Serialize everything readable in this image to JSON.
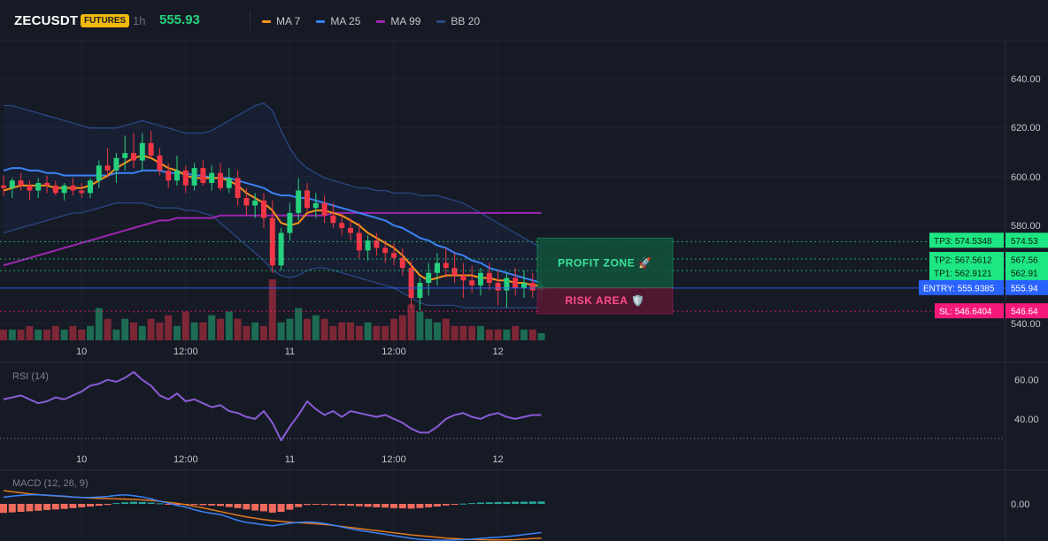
{
  "header": {
    "symbol": "ZECUSDT",
    "badge": "FUTURES",
    "interval": "1h",
    "price": "555.93",
    "legend": [
      {
        "label": "MA 7",
        "color": "#f7931a",
        "icon": "line-swatch-icon"
      },
      {
        "label": "MA 25",
        "color": "#3b82f6",
        "icon": "line-swatch-icon"
      },
      {
        "label": "MA 99",
        "color": "#9c27b0",
        "icon": "line-swatch-icon"
      },
      {
        "label": "BB 20",
        "color": "#2c4a8a",
        "icon": "line-swatch-icon"
      }
    ]
  },
  "colors": {
    "up": "#26d07c",
    "down": "#f23645",
    "vol_up": "#1f7a5c",
    "vol_down": "#8f2a3a",
    "ma7": "#f7931a",
    "ma25": "#3b82f6",
    "ma99": "#9c27b0",
    "bb": "#2c4a8a",
    "rsi": "#8a5cd6",
    "entry": "#2962ff",
    "tp": "#1de782",
    "sl": "#f7197a",
    "macd_line": "#3b82f6",
    "signal_line": "#e07a1f",
    "hist_pos": "#26a69a",
    "hist_neg": "#ef6a5c"
  },
  "chart_data": {
    "type": "candlestick",
    "time_labels": [
      {
        "label": "10",
        "index": 9
      },
      {
        "label": "12:00",
        "index": 21
      },
      {
        "label": "11",
        "index": 33
      },
      {
        "label": "12:00",
        "index": 45
      },
      {
        "label": "12",
        "index": 57
      }
    ],
    "price_axis": {
      "ticks": [
        "640.00",
        "620.00",
        "600.00",
        "580.00",
        "540.00"
      ],
      "range": [
        535,
        655
      ]
    },
    "ohlc": [
      [
        597,
        601,
        593,
        596
      ],
      [
        596,
        600,
        592,
        599
      ],
      [
        599,
        602,
        595,
        597
      ],
      [
        597,
        599,
        591,
        595
      ],
      [
        595,
        600,
        592,
        598
      ],
      [
        598,
        601,
        594,
        597
      ],
      [
        597,
        599,
        593,
        594
      ],
      [
        594,
        598,
        591,
        597
      ],
      [
        597,
        600,
        593,
        595
      ],
      [
        595,
        598,
        592,
        594
      ],
      [
        594,
        600,
        592,
        599
      ],
      [
        599,
        607,
        596,
        605
      ],
      [
        605,
        612,
        600,
        603
      ],
      [
        603,
        610,
        598,
        608
      ],
      [
        608,
        617,
        603,
        610
      ],
      [
        610,
        618,
        604,
        607
      ],
      [
        607,
        618,
        603,
        614
      ],
      [
        614,
        619,
        608,
        609
      ],
      [
        609,
        612,
        601,
        603
      ],
      [
        603,
        606,
        596,
        599
      ],
      [
        599,
        609,
        597,
        603
      ],
      [
        603,
        605,
        594,
        597
      ],
      [
        597,
        606,
        595,
        604
      ],
      [
        604,
        607,
        597,
        598
      ],
      [
        598,
        605,
        595,
        602
      ],
      [
        602,
        606,
        595,
        596
      ],
      [
        596,
        604,
        594,
        600
      ],
      [
        600,
        603,
        589,
        592
      ],
      [
        592,
        596,
        585,
        589
      ],
      [
        589,
        594,
        584,
        591
      ],
      [
        591,
        594,
        580,
        584
      ],
      [
        584,
        591,
        562,
        565
      ],
      [
        565,
        580,
        563,
        578
      ],
      [
        578,
        590,
        575,
        586
      ],
      [
        586,
        600,
        583,
        595
      ],
      [
        595,
        598,
        586,
        588
      ],
      [
        588,
        594,
        584,
        590
      ],
      [
        590,
        593,
        582,
        585
      ],
      [
        585,
        590,
        580,
        582
      ],
      [
        582,
        586,
        577,
        580
      ],
      [
        580,
        584,
        575,
        578
      ],
      [
        578,
        582,
        568,
        571
      ],
      [
        571,
        577,
        567,
        575
      ],
      [
        575,
        578,
        569,
        572
      ],
      [
        572,
        575,
        566,
        570
      ],
      [
        570,
        574,
        565,
        568
      ],
      [
        568,
        572,
        561,
        564
      ],
      [
        564,
        567,
        548,
        552
      ],
      [
        552,
        560,
        547,
        558
      ],
      [
        558,
        566,
        553,
        562
      ],
      [
        562,
        570,
        557,
        566
      ],
      [
        566,
        572,
        560,
        564
      ],
      [
        564,
        570,
        558,
        561
      ],
      [
        561,
        566,
        552,
        559
      ],
      [
        559,
        565,
        554,
        557
      ],
      [
        557,
        564,
        553,
        562
      ],
      [
        562,
        566,
        555,
        558
      ],
      [
        558,
        563,
        549,
        555
      ],
      [
        555,
        562,
        548,
        560
      ],
      [
        560,
        564,
        553,
        556
      ],
      [
        556,
        563,
        552,
        558
      ],
      [
        558,
        562,
        552,
        555
      ],
      [
        555,
        559,
        551,
        557
      ]
    ],
    "volume": [
      3,
      3,
      3,
      4,
      3,
      3,
      4,
      3,
      4,
      3,
      4,
      9,
      6,
      3,
      6,
      5,
      4,
      6,
      5,
      7,
      4,
      8,
      5,
      5,
      7,
      6,
      8,
      6,
      4,
      5,
      4,
      17,
      5,
      6,
      9,
      6,
      7,
      6,
      4,
      5,
      5,
      4,
      5,
      4,
      4,
      6,
      7,
      10,
      8,
      6,
      5,
      6,
      4,
      4,
      4,
      4,
      3,
      3,
      3,
      4,
      3,
      3,
      2
    ],
    "ma7": [
      595,
      596,
      597,
      597,
      597,
      597,
      596,
      596,
      596,
      596,
      597,
      599,
      601,
      604,
      606,
      608,
      609,
      608,
      606,
      604,
      603,
      601,
      600,
      600,
      600,
      600,
      599,
      597,
      594,
      592,
      590,
      587,
      582,
      581,
      582,
      586,
      587,
      587,
      586,
      585,
      583,
      581,
      578,
      576,
      574,
      572,
      569,
      565,
      561,
      559,
      560,
      561,
      561,
      561,
      561,
      560,
      560,
      559,
      559,
      558,
      558,
      557,
      557
    ],
    "ma25": [
      603,
      604,
      604,
      603,
      603,
      602,
      602,
      601,
      601,
      601,
      601,
      601,
      601,
      602,
      602,
      602,
      603,
      603,
      603,
      602,
      602,
      602,
      601,
      601,
      600,
      600,
      600,
      599,
      598,
      597,
      596,
      594,
      593,
      593,
      592,
      592,
      591,
      590,
      589,
      588,
      587,
      586,
      585,
      584,
      583,
      581,
      580,
      578,
      576,
      575,
      573,
      572,
      570,
      569,
      567,
      566,
      564,
      563,
      562,
      561,
      560,
      559,
      558
    ],
    "ma99": [
      565,
      566,
      567,
      568,
      569,
      570,
      571,
      572,
      573,
      574,
      575,
      576,
      577,
      578,
      579,
      580,
      581,
      582,
      583,
      583,
      584,
      584,
      584,
      584,
      584,
      585,
      585,
      585,
      585,
      585,
      585,
      585,
      585,
      585,
      585,
      585,
      585,
      585,
      586,
      586,
      586,
      586,
      586,
      586,
      586,
      586,
      586,
      586,
      586,
      586,
      586,
      586,
      586,
      586,
      586,
      586,
      586,
      586,
      586,
      586,
      586,
      586,
      586
    ],
    "bb_upper": [
      629,
      629,
      628,
      627,
      626,
      625,
      624,
      623,
      622,
      621,
      620,
      620,
      620,
      620,
      621,
      622,
      623,
      622,
      621,
      620,
      619,
      618,
      618,
      618,
      619,
      621,
      623,
      625,
      627,
      629,
      630,
      627,
      619,
      612,
      607,
      604,
      602,
      600,
      599,
      598,
      597,
      596,
      596,
      595,
      595,
      594,
      594,
      594,
      593,
      593,
      593,
      592,
      591,
      590,
      588,
      586,
      584,
      582,
      580,
      578,
      576,
      574,
      572
    ],
    "bb_lower": [
      578,
      579,
      580,
      581,
      582,
      583,
      584,
      585,
      586,
      586,
      587,
      588,
      589,
      590,
      590,
      590,
      590,
      589,
      588,
      588,
      588,
      587,
      587,
      586,
      585,
      582,
      579,
      576,
      573,
      570,
      567,
      563,
      561,
      560,
      561,
      563,
      564,
      564,
      563,
      562,
      561,
      560,
      559,
      558,
      557,
      556,
      554,
      552,
      550,
      549,
      549,
      549,
      549,
      548,
      548,
      548,
      548,
      548,
      548,
      548,
      548,
      548,
      548
    ],
    "levels": {
      "tp3": {
        "label": "TP3: 574.5348",
        "tag": "574.53",
        "price": 574.5348
      },
      "tp2": {
        "label": "TP2: 567.5612",
        "tag": "567.56",
        "price": 567.5612
      },
      "tp1": {
        "label": "TP1: 562.9121",
        "tag": "562.91",
        "price": 562.9121
      },
      "entry": {
        "label": "ENTRY: 555.9385",
        "tag": "555.94",
        "price": 555.9385
      },
      "sl": {
        "label": "SL: 546.6404",
        "tag": "546.64",
        "price": 546.6404
      }
    },
    "zones": {
      "profit": "PROFIT ZONE 🚀",
      "risk": "RISK AREA 🛡️"
    },
    "rsi": {
      "title": "RSI (14)",
      "ticks": [
        "60.00",
        "40.00"
      ],
      "range": [
        25,
        68
      ],
      "level": 30,
      "values": [
        50,
        51,
        52,
        50,
        48,
        49,
        51,
        50,
        52,
        54,
        57,
        58,
        60,
        59,
        61,
        64,
        60,
        57,
        52,
        50,
        53,
        49,
        50,
        48,
        46,
        47,
        44,
        43,
        41,
        40,
        44,
        38,
        29,
        36,
        42,
        49,
        45,
        42,
        44,
        41,
        44,
        43,
        42,
        41,
        42,
        40,
        38,
        35,
        33,
        33,
        36,
        40,
        42,
        43,
        41,
        40,
        42,
        43,
        41,
        40,
        41,
        42,
        42
      ]
    },
    "macd": {
      "title": "MACD (12, 26, 9)",
      "ticks": [
        "0.00"
      ],
      "range": [
        -14,
        12
      ],
      "hist": [
        -3.4,
        -3.2,
        -3.0,
        -2.8,
        -2.6,
        -2.3,
        -2.1,
        -1.9,
        -1.6,
        -1.3,
        -1.0,
        -0.7,
        -0.4,
        0.3,
        0.6,
        0.8,
        0.7,
        0.5,
        0.2,
        -0.2,
        -0.3,
        -0.3,
        -0.4,
        -0.5,
        -0.6,
        -0.8,
        -1.2,
        -1.6,
        -2.1,
        -2.5,
        -2.8,
        -3.3,
        -3.0,
        -2.2,
        -1.2,
        -0.4,
        -0.3,
        -0.4,
        -0.5,
        -0.6,
        -0.7,
        -0.9,
        -1.1,
        -1.3,
        -1.4,
        -1.6,
        -1.7,
        -1.8,
        -1.6,
        -1.3,
        -1.0,
        -0.6,
        -0.3,
        0.1,
        0.3,
        0.5,
        0.6,
        0.7,
        0.7,
        0.8,
        0.8,
        0.9,
        0.9
      ],
      "macd_line": [
        2.5,
        2.9,
        3.2,
        3.4,
        3.4,
        3.3,
        3.1,
        2.9,
        2.6,
        2.4,
        2.4,
        2.6,
        2.8,
        3.2,
        3.4,
        3.1,
        2.6,
        1.9,
        1.0,
        0.3,
        -0.6,
        -1.2,
        -2.2,
        -3.0,
        -3.6,
        -4.0,
        -5.1,
        -6.2,
        -7.0,
        -7.4,
        -7.9,
        -8.3,
        -7.8,
        -7.3,
        -7.0,
        -6.8,
        -7.0,
        -7.4,
        -8.0,
        -8.7,
        -9.4,
        -10.0,
        -10.5,
        -11.0,
        -11.5,
        -12.0,
        -12.5,
        -13.0,
        -13.4,
        -13.6,
        -13.7,
        -13.7,
        -13.6,
        -13.5,
        -13.3,
        -13.0,
        -12.8,
        -12.6,
        -12.3,
        -12.0,
        -11.6,
        -11.2,
        -10.8
      ],
      "signal_line": [
        5.0,
        4.6,
        4.2,
        3.8,
        3.5,
        3.2,
        3.0,
        2.8,
        2.6,
        2.4,
        2.2,
        2.1,
        2.0,
        1.9,
        1.8,
        1.7,
        1.5,
        1.3,
        1.0,
        0.6,
        0.2,
        -0.3,
        -0.9,
        -1.5,
        -2.2,
        -2.9,
        -3.6,
        -4.3,
        -4.9,
        -5.4,
        -5.9,
        -6.3,
        -6.6,
        -6.9,
        -7.1,
        -7.3,
        -7.5,
        -7.8,
        -8.1,
        -8.5,
        -8.9,
        -9.3,
        -9.7,
        -10.1,
        -10.5,
        -10.9,
        -11.3,
        -11.7,
        -12.0,
        -12.3,
        -12.6,
        -12.9,
        -13.1,
        -13.3,
        -13.4,
        -13.5,
        -13.6,
        -13.6,
        -13.6,
        -13.5,
        -13.3,
        -13.1,
        -12.9
      ]
    }
  }
}
